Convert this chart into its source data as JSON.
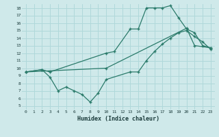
{
  "xlabel": "Humidex (Indice chaleur)",
  "bg_color": "#cfe9ea",
  "grid_color": "#b0d8da",
  "line_color": "#2a7a6a",
  "xlim": [
    -0.5,
    23.5
  ],
  "ylim": [
    4.5,
    18.5
  ],
  "xticks": [
    0,
    1,
    2,
    3,
    4,
    5,
    6,
    7,
    8,
    9,
    10,
    11,
    12,
    13,
    14,
    15,
    16,
    17,
    18,
    19,
    20,
    21,
    22,
    23
  ],
  "yticks": [
    5,
    6,
    7,
    8,
    9,
    10,
    11,
    12,
    13,
    14,
    15,
    16,
    17,
    18
  ],
  "line1_x": [
    0,
    2,
    3,
    10,
    11,
    13,
    14,
    15,
    16,
    17,
    18,
    19,
    20,
    21,
    22,
    23
  ],
  "line1_y": [
    9.5,
    9.8,
    9.5,
    12.0,
    12.2,
    15.2,
    15.2,
    18.0,
    18.0,
    18.0,
    18.3,
    16.7,
    15.2,
    14.7,
    13.0,
    12.7
  ],
  "line2_x": [
    0,
    10,
    20,
    21,
    23
  ],
  "line2_y": [
    9.5,
    10.0,
    15.3,
    13.0,
    12.7
  ],
  "line3_x": [
    0,
    2,
    3,
    4,
    5,
    6,
    7,
    8,
    9,
    10,
    13,
    14,
    15,
    16,
    17,
    18,
    19,
    20,
    21,
    22,
    23
  ],
  "line3_y": [
    9.5,
    9.8,
    8.8,
    7.0,
    7.5,
    7.0,
    6.5,
    5.5,
    6.7,
    8.5,
    9.5,
    9.5,
    11.0,
    12.2,
    13.2,
    14.0,
    14.7,
    15.0,
    14.2,
    13.5,
    12.5
  ]
}
